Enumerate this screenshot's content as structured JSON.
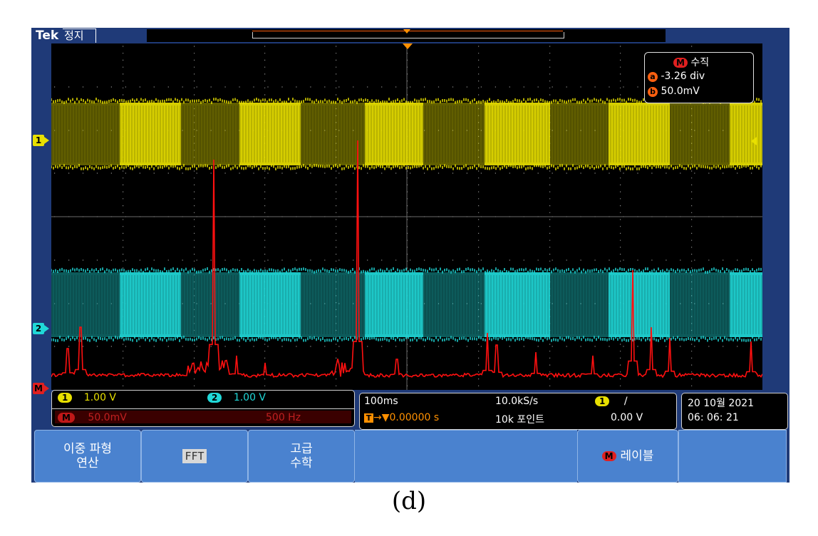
{
  "header": {
    "brand": "Tek",
    "status": "정지"
  },
  "vertical_box": {
    "title_badge": "M",
    "title": "수직",
    "a_badge": "a",
    "a_value": "-3.26 div",
    "b_badge": "b",
    "b_value": "50.0mV"
  },
  "markers": {
    "ch1": "1",
    "ch2": "2",
    "math": "M"
  },
  "channels": {
    "ch1_badge": "1",
    "ch1_scale": "1.00 V",
    "ch2_badge": "2",
    "ch2_scale": "1.00 V",
    "math_badge": "M",
    "math_scale": "50.0mV",
    "math_freq": "500 Hz"
  },
  "timebase": {
    "time_div": "100ms",
    "sample_rate": "10.0kS/s",
    "trigger_badge": "T",
    "trigger_pos": "→▼0.00000 s",
    "record_length": "10k 포인트",
    "trig_channel": "1",
    "trig_slope": "/",
    "trig_level": "0.00 V"
  },
  "datetime": {
    "date": "20 10월 2021",
    "time": "06: 06: 21"
  },
  "softkeys": {
    "dual_math": "이중 파형\n연산",
    "fft": "FFT",
    "advanced_math": "고급\n수학",
    "label_badge": "M",
    "label": "레이블"
  },
  "caption": "(d)",
  "colors": {
    "ch1": "#e8e000",
    "ch2": "#20d8d8",
    "math": "#ff1010",
    "frame": "#1f3a78",
    "softkey": "#4a82cf"
  }
}
